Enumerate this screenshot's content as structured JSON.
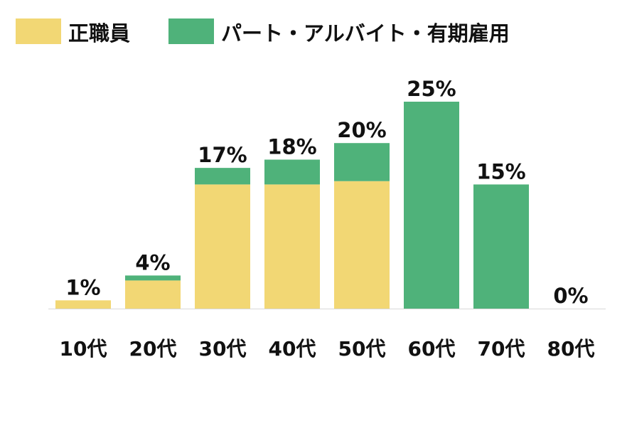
{
  "colors": {
    "seishain": "#f2d774",
    "part": "#4fb27a",
    "baseline": "#d9d9d9",
    "text": "#111111"
  },
  "chart_data": {
    "type": "bar",
    "stacked": true,
    "categories": [
      "10代",
      "20代",
      "30代",
      "40代",
      "50代",
      "60代",
      "70代",
      "80代"
    ],
    "series": [
      {
        "name": "正職員",
        "values": [
          1,
          3.4,
          15,
          15,
          15.4,
          0,
          0,
          0
        ]
      },
      {
        "name": "パート・アルバイト・有期雇用",
        "values": [
          0,
          0.6,
          2,
          3,
          4.6,
          25,
          15,
          0
        ]
      }
    ],
    "totals": [
      1,
      4,
      17,
      18,
      20,
      25,
      15,
      0
    ],
    "total_labels": [
      "1%",
      "4%",
      "17%",
      "18%",
      "20%",
      "25%",
      "15%",
      "0%"
    ],
    "legend": "top-left",
    "ylim": [
      0,
      25
    ],
    "grid": false
  }
}
